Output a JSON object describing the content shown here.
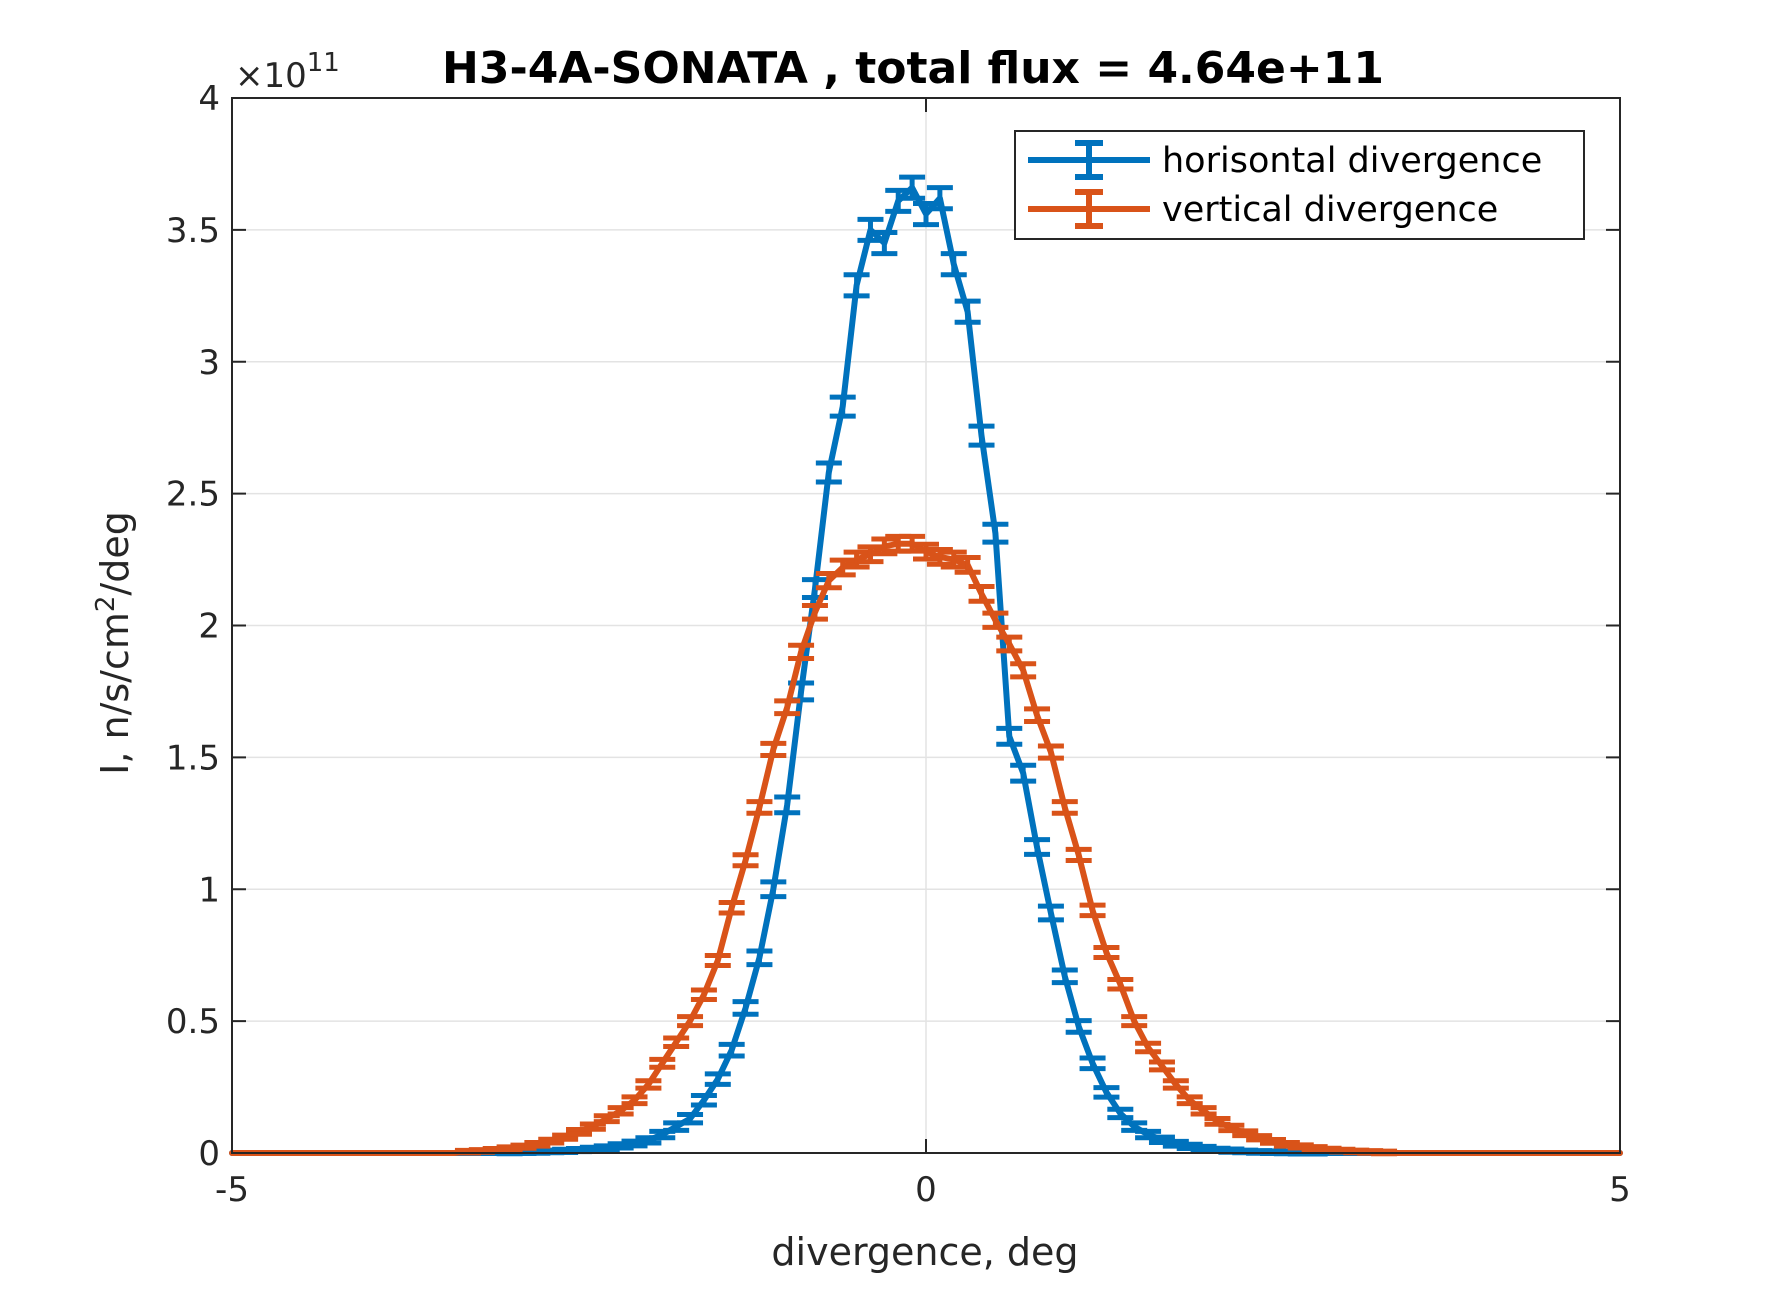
{
  "chart_data": {
    "type": "line",
    "title": "H3-4A-SONATA , total flux =  4.64e+11",
    "xlabel": "divergence, deg",
    "ylabel_main": "I, n/s/cm",
    "ylabel_sup": "2",
    "ylabel_tail": "/deg",
    "y_multiplier_base": "×10",
    "y_multiplier_exp": "11",
    "xlim": [
      -5,
      5
    ],
    "ylim": [
      0,
      4
    ],
    "x_ticks": [
      -5,
      0,
      5
    ],
    "x_tick_labels": [
      "-5",
      "0",
      "5"
    ],
    "y_ticks": [
      0,
      0.5,
      1,
      1.5,
      2,
      2.5,
      3,
      3.5,
      4
    ],
    "y_tick_labels": [
      "0",
      "0.5",
      "1",
      "1.5",
      "2",
      "2.5",
      "3",
      "3.5",
      "4"
    ],
    "grid": true,
    "legend_position": "top-right",
    "series": [
      {
        "name": "horisontal divergence",
        "color": "#0072BD",
        "x": [
          -5.0,
          -3.1,
          -3.0,
          -2.9,
          -2.8,
          -2.7,
          -2.6,
          -2.5,
          -2.4,
          -2.3,
          -2.2,
          -2.1,
          -2.0,
          -1.9,
          -1.8,
          -1.7,
          -1.6,
          -1.5,
          -1.4,
          -1.3,
          -1.2,
          -1.1,
          -1.0,
          -0.9,
          -0.8,
          -0.7,
          -0.6,
          -0.5,
          -0.4,
          -0.3,
          -0.2,
          -0.1,
          0.0,
          0.1,
          0.2,
          0.3,
          0.4,
          0.5,
          0.6,
          0.7,
          0.8,
          0.9,
          1.0,
          1.1,
          1.2,
          1.3,
          1.4,
          1.5,
          1.6,
          1.7,
          1.8,
          1.9,
          2.0,
          2.1,
          2.2,
          2.3,
          2.4,
          2.5,
          2.6,
          2.7,
          2.8,
          2.9,
          3.1,
          5.0
        ],
        "y": [
          0,
          0,
          0.002,
          0.003,
          0.004,
          0.006,
          0.008,
          0.011,
          0.015,
          0.02,
          0.027,
          0.036,
          0.048,
          0.07,
          0.1,
          0.13,
          0.2,
          0.28,
          0.39,
          0.55,
          0.74,
          1.0,
          1.32,
          1.75,
          2.14,
          2.58,
          2.83,
          3.29,
          3.5,
          3.45,
          3.61,
          3.66,
          3.56,
          3.62,
          3.37,
          3.19,
          2.72,
          2.35,
          1.58,
          1.44,
          1.16,
          0.91,
          0.67,
          0.48,
          0.34,
          0.23,
          0.15,
          0.1,
          0.07,
          0.05,
          0.035,
          0.025,
          0.018,
          0.012,
          0.009,
          0.006,
          0.004,
          0.003,
          0.002,
          0.001,
          0.001,
          0,
          0,
          0
        ],
        "err": [
          0,
          0,
          0.005,
          0.005,
          0.005,
          0.005,
          0.006,
          0.006,
          0.007,
          0.007,
          0.008,
          0.009,
          0.01,
          0.012,
          0.014,
          0.016,
          0.018,
          0.02,
          0.022,
          0.024,
          0.026,
          0.028,
          0.03,
          0.032,
          0.034,
          0.036,
          0.036,
          0.04,
          0.04,
          0.04,
          0.04,
          0.04,
          0.04,
          0.04,
          0.04,
          0.04,
          0.036,
          0.034,
          0.03,
          0.03,
          0.028,
          0.026,
          0.024,
          0.022,
          0.02,
          0.018,
          0.016,
          0.014,
          0.012,
          0.01,
          0.009,
          0.008,
          0.007,
          0.006,
          0.006,
          0.005,
          0.005,
          0.005,
          0.005,
          0.005,
          0.005,
          0,
          0,
          0
        ]
      },
      {
        "name": "vertical divergence",
        "color": "#D95319",
        "x": [
          -5.0,
          -4.6,
          -3.4,
          -3.3,
          -3.2,
          -3.1,
          -3.0,
          -2.9,
          -2.8,
          -2.7,
          -2.6,
          -2.5,
          -2.4,
          -2.3,
          -2.2,
          -2.1,
          -2.0,
          -1.9,
          -1.8,
          -1.7,
          -1.6,
          -1.5,
          -1.4,
          -1.3,
          -1.2,
          -1.1,
          -1.0,
          -0.9,
          -0.8,
          -0.7,
          -0.6,
          -0.5,
          -0.4,
          -0.3,
          -0.2,
          -0.1,
          0.0,
          0.1,
          0.2,
          0.3,
          0.4,
          0.5,
          0.6,
          0.7,
          0.8,
          0.9,
          1.0,
          1.1,
          1.2,
          1.3,
          1.4,
          1.5,
          1.6,
          1.7,
          1.8,
          1.9,
          2.0,
          2.1,
          2.2,
          2.3,
          2.4,
          2.5,
          2.6,
          2.7,
          2.8,
          2.9,
          3.0,
          3.1,
          3.2,
          3.3,
          3.4,
          4.6,
          5.0
        ],
        "y": [
          0,
          0,
          0,
          0.005,
          0.008,
          0.012,
          0.017,
          0.024,
          0.033,
          0.045,
          0.06,
          0.08,
          0.1,
          0.13,
          0.16,
          0.2,
          0.26,
          0.34,
          0.42,
          0.5,
          0.6,
          0.73,
          0.93,
          1.11,
          1.31,
          1.53,
          1.69,
          1.9,
          2.05,
          2.17,
          2.22,
          2.25,
          2.27,
          2.3,
          2.31,
          2.31,
          2.28,
          2.26,
          2.25,
          2.23,
          2.12,
          2.02,
          1.93,
          1.83,
          1.66,
          1.52,
          1.31,
          1.13,
          0.92,
          0.76,
          0.64,
          0.5,
          0.4,
          0.33,
          0.26,
          0.2,
          0.16,
          0.12,
          0.095,
          0.075,
          0.058,
          0.044,
          0.033,
          0.025,
          0.018,
          0.013,
          0.009,
          0.006,
          0.004,
          0.002,
          0,
          0,
          0
        ],
        "err": [
          0,
          0,
          0,
          0.005,
          0.005,
          0.005,
          0.006,
          0.006,
          0.007,
          0.007,
          0.008,
          0.009,
          0.01,
          0.011,
          0.012,
          0.013,
          0.014,
          0.015,
          0.016,
          0.017,
          0.018,
          0.019,
          0.02,
          0.021,
          0.022,
          0.023,
          0.024,
          0.025,
          0.026,
          0.027,
          0.028,
          0.028,
          0.028,
          0.028,
          0.028,
          0.028,
          0.028,
          0.028,
          0.028,
          0.028,
          0.028,
          0.027,
          0.026,
          0.025,
          0.024,
          0.023,
          0.022,
          0.021,
          0.02,
          0.019,
          0.018,
          0.017,
          0.016,
          0.015,
          0.014,
          0.013,
          0.012,
          0.011,
          0.01,
          0.009,
          0.008,
          0.007,
          0.007,
          0.006,
          0.006,
          0.005,
          0.005,
          0.005,
          0.005,
          0.005,
          0,
          0,
          0
        ]
      }
    ]
  }
}
